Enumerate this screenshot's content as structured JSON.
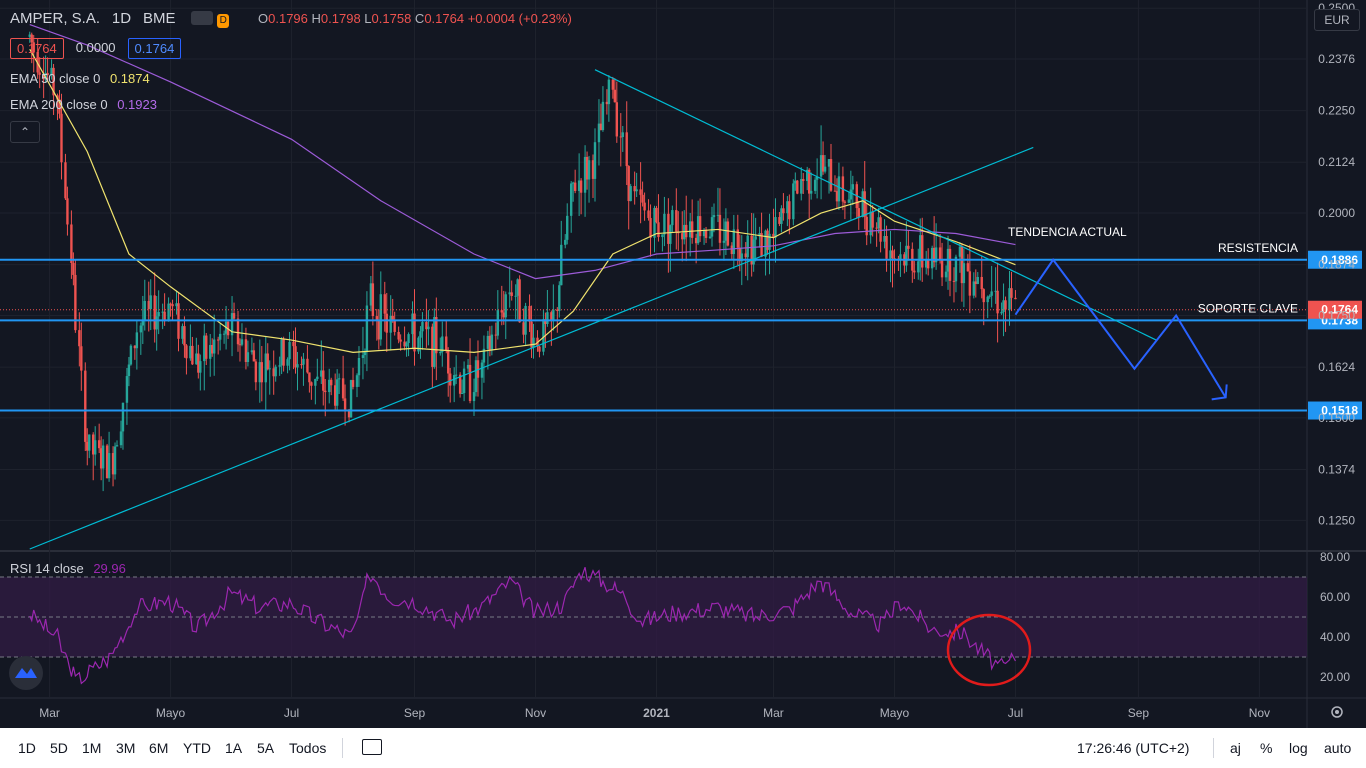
{
  "header": {
    "symbol": "AMPER, S.A.",
    "interval": "1D",
    "exchange": "BME",
    "badge_d": "D",
    "ohlc": {
      "o_label": "O",
      "o": "0.1796",
      "h_label": "H",
      "h": "0.1798",
      "l_label": "L",
      "l": "0.1758",
      "c_label": "C",
      "c": "0.1764",
      "change": "+0.0004 (+0.23%)"
    },
    "values": {
      "bid": "0.1764",
      "spread": "0.0000",
      "ask": "0.1764"
    }
  },
  "indicators": {
    "ema50": {
      "label": "EMA 50 close 0",
      "value": "0.1874",
      "color": "#f0e36e"
    },
    "ema200": {
      "label": "EMA 200 close 0",
      "value": "0.1923",
      "color": "#9c5bd8"
    },
    "rsi": {
      "label": "RSI 14 close",
      "value": "29.96",
      "color": "#9c27b0"
    },
    "collapse_icon": "chevron-up-icon"
  },
  "currency": "EUR",
  "chart_data": {
    "type": "line",
    "title": "",
    "price_axis": {
      "ticks": [
        "0.2500",
        "0.2376",
        "0.2250",
        "0.2124",
        "0.2000",
        "0.1874",
        "0.1750",
        "0.1624",
        "0.1500",
        "0.1374",
        "0.1250"
      ],
      "range": [
        0.118,
        0.252
      ]
    },
    "time_axis": {
      "ticks": [
        "Mar",
        "Mayo",
        "Jul",
        "Sep",
        "Nov",
        "2021",
        "Mar",
        "Mayo",
        "Jul",
        "Sep",
        "Nov"
      ]
    },
    "close_series": {
      "x": [
        "2020-02-20",
        "2020-03-05",
        "2020-03-12",
        "2020-03-20",
        "2020-04-01",
        "2020-04-15",
        "2020-05-01",
        "2020-05-15",
        "2020-06-01",
        "2020-06-15",
        "2020-07-01",
        "2020-07-15",
        "2020-08-01",
        "2020-08-10",
        "2020-08-20",
        "2020-09-01",
        "2020-09-15",
        "2020-09-25",
        "2020-10-05",
        "2020-10-20",
        "2020-11-01",
        "2020-11-10",
        "2020-11-20",
        "2020-12-01",
        "2020-12-10",
        "2020-12-20",
        "2021-01-01",
        "2021-01-15",
        "2021-02-01",
        "2021-02-15",
        "2021-03-01",
        "2021-03-15",
        "2021-03-25",
        "2021-04-05",
        "2021-04-20",
        "2021-05-01",
        "2021-05-15",
        "2021-06-01",
        "2021-06-15",
        "2021-06-25",
        "2021-07-01"
      ],
      "y": [
        0.243,
        0.229,
        0.19,
        0.143,
        0.138,
        0.173,
        0.178,
        0.163,
        0.172,
        0.162,
        0.166,
        0.158,
        0.155,
        0.178,
        0.172,
        0.17,
        0.168,
        0.158,
        0.161,
        0.183,
        0.169,
        0.172,
        0.206,
        0.213,
        0.232,
        0.204,
        0.197,
        0.198,
        0.196,
        0.193,
        0.193,
        0.208,
        0.211,
        0.205,
        0.2,
        0.19,
        0.189,
        0.188,
        0.184,
        0.178,
        0.1764
      ]
    },
    "ema50_series": {
      "name": "EMA 50",
      "x": [
        "2020-02-20",
        "2020-03-20",
        "2020-04-10",
        "2020-05-01",
        "2020-06-01",
        "2020-07-01",
        "2020-08-01",
        "2020-09-01",
        "2020-10-01",
        "2020-11-01",
        "2020-11-20",
        "2020-12-10",
        "2021-01-01",
        "2021-02-01",
        "2021-03-01",
        "2021-03-25",
        "2021-04-15",
        "2021-05-01",
        "2021-06-01",
        "2021-07-01"
      ],
      "y": [
        0.24,
        0.215,
        0.19,
        0.182,
        0.171,
        0.169,
        0.166,
        0.167,
        0.166,
        0.168,
        0.176,
        0.19,
        0.195,
        0.196,
        0.194,
        0.2,
        0.203,
        0.198,
        0.193,
        0.1874
      ]
    },
    "ema200_series": {
      "name": "EMA 200",
      "x": [
        "2020-02-20",
        "2020-03-20",
        "2020-05-01",
        "2020-07-01",
        "2020-08-15",
        "2020-10-01",
        "2020-11-01",
        "2020-12-01",
        "2021-01-01",
        "2021-02-01",
        "2021-03-01",
        "2021-04-01",
        "2021-05-01",
        "2021-06-01",
        "2021-07-01"
      ],
      "y": [
        0.246,
        0.241,
        0.232,
        0.218,
        0.203,
        0.19,
        0.184,
        0.186,
        0.19,
        0.191,
        0.192,
        0.195,
        0.196,
        0.195,
        0.1923
      ]
    },
    "horizontal_levels": [
      {
        "value": 0.1886,
        "label": "RESISTENCIA",
        "tag": "0.1886"
      },
      {
        "value": 0.1738,
        "label": "SOPORTE CLAVE",
        "tag": "0.1738"
      },
      {
        "value": 0.1518,
        "label": "",
        "tag": "0.1518"
      }
    ],
    "last_price": {
      "value": 0.1764,
      "tag": "0.1764"
    },
    "trendlines": [
      {
        "label": "TENDENCIA ACTUAL",
        "points": [
          [
            "2020-12-01",
            0.235
          ],
          [
            "2021-09-10",
            0.169
          ]
        ]
      },
      {
        "label": "",
        "points": [
          [
            "2020-02-20",
            0.118
          ],
          [
            "2021-07-10",
            0.216
          ]
        ]
      }
    ],
    "projection": {
      "points": [
        [
          "2021-07-01",
          0.1752
        ],
        [
          "2021-07-20",
          0.1886
        ],
        [
          "2021-08-30",
          0.162
        ],
        [
          "2021-09-20",
          0.175
        ],
        [
          "2021-10-15",
          0.155
        ]
      ]
    },
    "rsi": {
      "axis_ticks": [
        "80.00",
        "60.00",
        "40.00",
        "20.00"
      ],
      "range": [
        10,
        82
      ],
      "bands": [
        70,
        50,
        30
      ],
      "x": [
        "2020-02-20",
        "2020-03-05",
        "2020-03-15",
        "2020-04-01",
        "2020-04-15",
        "2020-05-01",
        "2020-05-15",
        "2020-06-01",
        "2020-06-15",
        "2020-07-01",
        "2020-07-15",
        "2020-08-01",
        "2020-08-10",
        "2020-08-20",
        "2020-09-01",
        "2020-09-20",
        "2020-10-05",
        "2020-10-20",
        "2020-11-01",
        "2020-11-15",
        "2020-11-25",
        "2020-12-05",
        "2020-12-15",
        "2020-12-25",
        "2021-01-10",
        "2021-02-01",
        "2021-02-20",
        "2021-03-10",
        "2021-03-25",
        "2021-04-10",
        "2021-04-25",
        "2021-05-05",
        "2021-05-20",
        "2021-06-05",
        "2021-06-15",
        "2021-06-25",
        "2021-07-01"
      ],
      "y": [
        52,
        40,
        18,
        30,
        55,
        58,
        44,
        62,
        55,
        57,
        48,
        40,
        72,
        60,
        58,
        48,
        55,
        68,
        52,
        56,
        74,
        68,
        62,
        48,
        52,
        55,
        50,
        54,
        68,
        52,
        46,
        58,
        44,
        42,
        32,
        24,
        29.96
      ]
    }
  },
  "bottom_bar": {
    "timeframes": [
      "1D",
      "5D",
      "1M",
      "3M",
      "6M",
      "YTD",
      "1A",
      "5A",
      "Todos"
    ],
    "clock": "17:26:46 (UTC+2)",
    "options": [
      "aj",
      "%",
      "log",
      "auto"
    ]
  },
  "colors": {
    "up": "#26a69a",
    "down": "#ef5350",
    "level": "#2196f3",
    "trend": "#00bcd4",
    "projection": "#2962ff",
    "rsi_band": "#3b1f4f"
  }
}
